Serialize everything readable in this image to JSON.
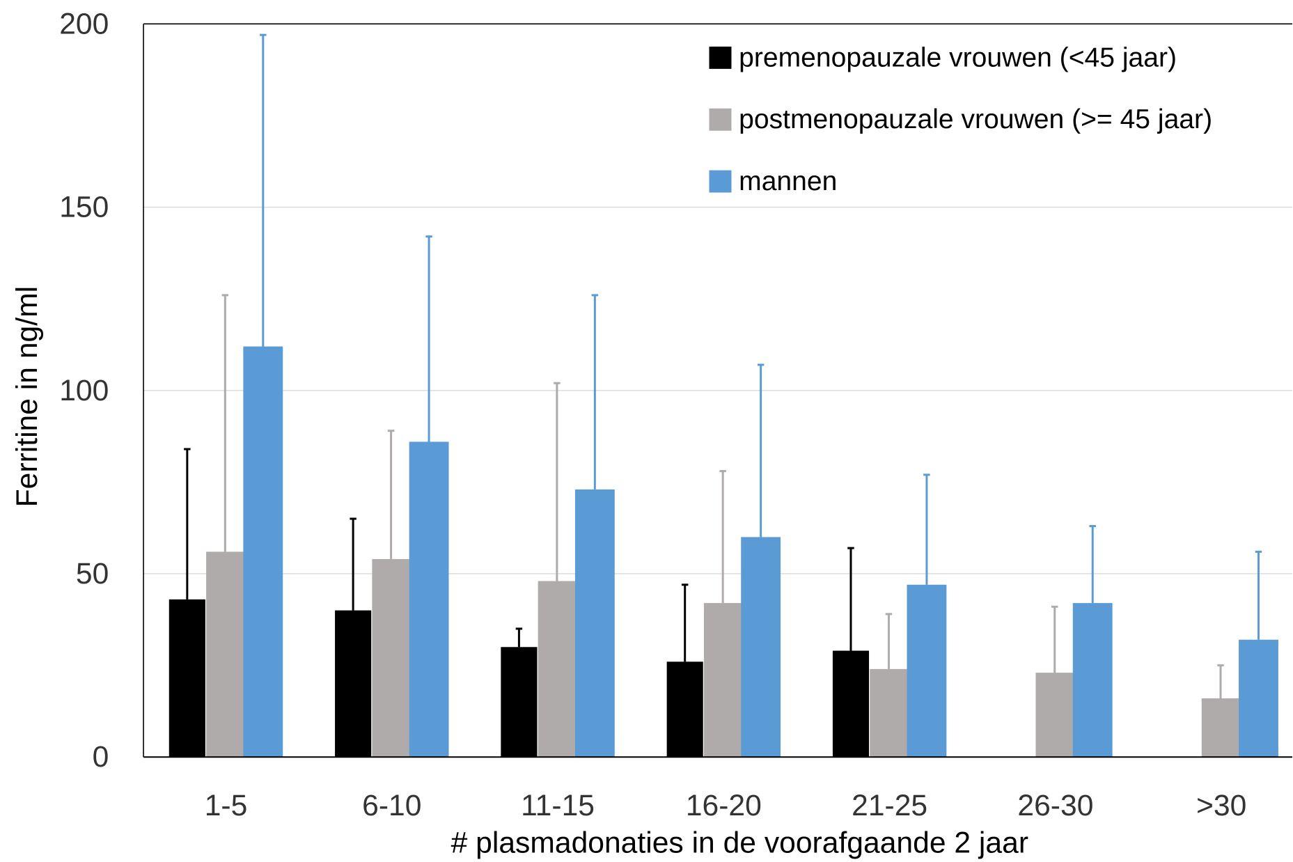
{
  "chart_data": {
    "type": "bar",
    "title": "",
    "xlabel": "# plasmadonaties in de voorafgaande 2 jaar",
    "ylabel": "Ferritine in ng/ml",
    "ylim": [
      0,
      200
    ],
    "yticks": [
      0,
      50,
      100,
      150,
      200
    ],
    "grid": true,
    "legend_position": "top-right",
    "categories": [
      "1-5",
      "6-10",
      "11-15",
      "16-20",
      "21-25",
      "26-30",
      ">30"
    ],
    "series": [
      {
        "name": "premenopauzale vrouwen (<45 jaar)",
        "color": "#000000",
        "values": [
          43,
          40,
          30,
          26,
          29,
          null,
          null
        ],
        "error": [
          41,
          25,
          5,
          21,
          28,
          null,
          null
        ]
      },
      {
        "name": "postmenopauzale vrouwen (>= 45 jaar)",
        "color": "#AFABAB",
        "values": [
          56,
          54,
          48,
          42,
          24,
          23,
          16
        ],
        "error": [
          70,
          35,
          54,
          36,
          15,
          18,
          9
        ]
      },
      {
        "name": "mannen",
        "color": "#5B9BD5",
        "values": [
          112,
          86,
          73,
          60,
          47,
          42,
          32
        ],
        "error": [
          85,
          56,
          53,
          47,
          30,
          21,
          24
        ]
      }
    ]
  }
}
